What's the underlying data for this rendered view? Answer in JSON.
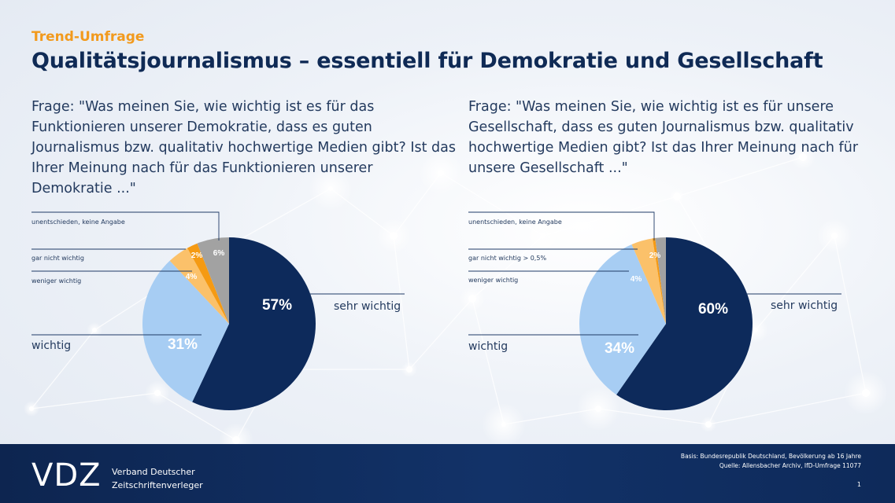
{
  "header": {
    "eyebrow": "Trend-Umfrage",
    "title": "Qualitätsjournalismus – essentiell für Demokratie und Gesellschaft"
  },
  "questions": {
    "left": "Frage: \"Was meinen Sie, wie wichtig ist es für das Funktionieren unserer Demokratie, dass es guten Journalismus bzw. qualitativ hochwertige Medien gibt? Ist das Ihrer Meinung nach für das Funktionieren unserer Demokratie ...\"",
    "right": "Frage: \"Was meinen Sie, wie wichtig ist es für unsere Gesellschaft, dass es guten Journalismus bzw. qualitativ hochwertige Medien gibt? Ist das Ihrer Meinung nach für unsere Gesellschaft ...\""
  },
  "colors": {
    "sehr_wichtig": "#0d2a5b",
    "wichtig": "#a7cdf3",
    "weniger_wichtig": "#fbc16a",
    "gar_nicht_wichtig": "#f59a13",
    "unentschieden": "#a2a2a2",
    "eyebrow": "#f29a1d",
    "title": "#0f2a55"
  },
  "chart_data": [
    {
      "type": "pie",
      "categories": [
        "sehr wichtig",
        "wichtig",
        "weniger wichtig",
        "gar nicht wichtig",
        "unentschieden, keine Angabe"
      ],
      "values": [
        57,
        31,
        4,
        2,
        6
      ],
      "value_labels": [
        "57%",
        "31%",
        "4%",
        "2%",
        "6%"
      ]
    },
    {
      "type": "pie",
      "categories": [
        "sehr wichtig",
        "wichtig",
        "weniger wichtig",
        "gar nicht wichtig > 0,5%",
        "unentschieden, keine Angabe"
      ],
      "values": [
        60,
        34,
        4,
        0.5,
        2
      ],
      "value_labels": [
        "60%",
        "34%",
        "4%",
        "",
        "2%"
      ]
    }
  ],
  "footer": {
    "logo": "VDZ",
    "org_line1": "Verband Deutscher",
    "org_line2": "Zeitschriftenverleger",
    "basis": "Basis: Bundesrepublik Deutschland, Bevölkerung ab 16 Jahre",
    "source": "Quelle: Allensbacher Archiv, IfD-Umfrage 11077",
    "page": "1"
  }
}
